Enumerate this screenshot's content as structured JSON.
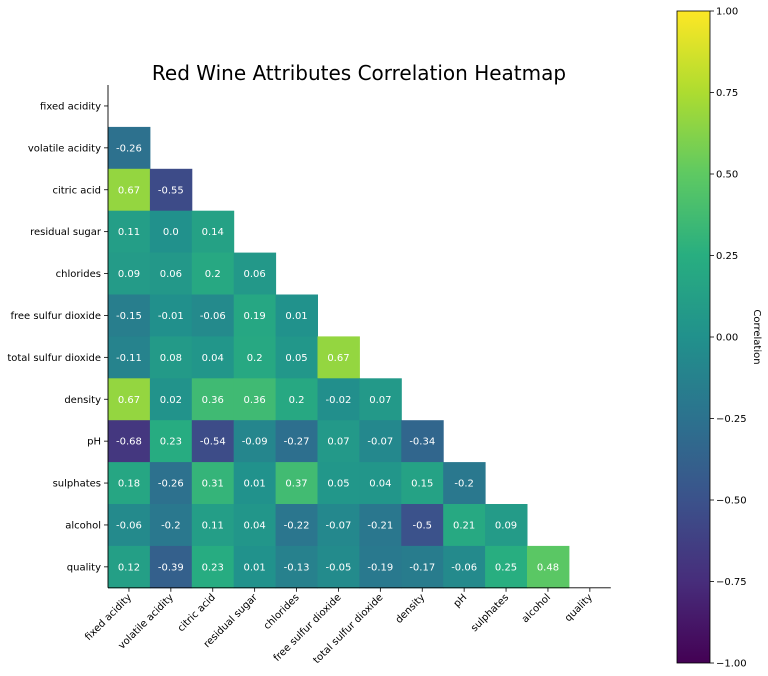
{
  "chart_data": {
    "type": "heatmap",
    "title": "Red Wine Attributes Correlation Heatmap",
    "colormap": "viridis",
    "mask": "upper-triangle-including-diagonal",
    "labels": [
      "fixed acidity",
      "volatile acidity",
      "citric acid",
      "residual sugar",
      "chlorides",
      "free sulfur dioxide",
      "total sulfur dioxide",
      "density",
      "pH",
      "sulphates",
      "alcohol",
      "quality"
    ],
    "values": [
      [
        null,
        null,
        null,
        null,
        null,
        null,
        null,
        null,
        null,
        null,
        null,
        null
      ],
      [
        -0.26,
        null,
        null,
        null,
        null,
        null,
        null,
        null,
        null,
        null,
        null,
        null
      ],
      [
        0.67,
        -0.55,
        null,
        null,
        null,
        null,
        null,
        null,
        null,
        null,
        null,
        null
      ],
      [
        0.11,
        0.0,
        0.14,
        null,
        null,
        null,
        null,
        null,
        null,
        null,
        null,
        null
      ],
      [
        0.09,
        0.06,
        0.2,
        0.06,
        null,
        null,
        null,
        null,
        null,
        null,
        null,
        null
      ],
      [
        -0.15,
        -0.01,
        -0.06,
        0.19,
        0.01,
        null,
        null,
        null,
        null,
        null,
        null,
        null
      ],
      [
        -0.11,
        0.08,
        0.04,
        0.2,
        0.05,
        0.67,
        null,
        null,
        null,
        null,
        null,
        null
      ],
      [
        0.67,
        0.02,
        0.36,
        0.36,
        0.2,
        -0.02,
        0.07,
        null,
        null,
        null,
        null,
        null
      ],
      [
        -0.68,
        0.23,
        -0.54,
        -0.09,
        -0.27,
        0.07,
        -0.07,
        -0.34,
        null,
        null,
        null,
        null
      ],
      [
        0.18,
        -0.26,
        0.31,
        0.01,
        0.37,
        0.05,
        0.04,
        0.15,
        -0.2,
        null,
        null,
        null
      ],
      [
        -0.06,
        -0.2,
        0.11,
        0.04,
        -0.22,
        -0.07,
        -0.21,
        -0.5,
        0.21,
        0.09,
        null,
        null
      ],
      [
        0.12,
        -0.39,
        0.23,
        0.01,
        -0.13,
        -0.05,
        -0.19,
        -0.17,
        -0.06,
        0.25,
        0.48,
        null
      ]
    ],
    "value_labels": [
      [
        null,
        null,
        null,
        null,
        null,
        null,
        null,
        null,
        null,
        null,
        null,
        null
      ],
      [
        "-0.26",
        null,
        null,
        null,
        null,
        null,
        null,
        null,
        null,
        null,
        null,
        null
      ],
      [
        "0.67",
        "-0.55",
        null,
        null,
        null,
        null,
        null,
        null,
        null,
        null,
        null,
        null
      ],
      [
        "0.11",
        "0.0",
        "0.14",
        null,
        null,
        null,
        null,
        null,
        null,
        null,
        null,
        null
      ],
      [
        "0.09",
        "0.06",
        "0.2",
        "0.06",
        null,
        null,
        null,
        null,
        null,
        null,
        null,
        null
      ],
      [
        "-0.15",
        "-0.01",
        "-0.06",
        "0.19",
        "0.01",
        null,
        null,
        null,
        null,
        null,
        null,
        null
      ],
      [
        "-0.11",
        "0.08",
        "0.04",
        "0.2",
        "0.05",
        "0.67",
        null,
        null,
        null,
        null,
        null,
        null
      ],
      [
        "0.67",
        "0.02",
        "0.36",
        "0.36",
        "0.2",
        "-0.02",
        "0.07",
        null,
        null,
        null,
        null,
        null
      ],
      [
        "-0.68",
        "0.23",
        "-0.54",
        "-0.09",
        "-0.27",
        "0.07",
        "-0.07",
        "-0.34",
        null,
        null,
        null,
        null
      ],
      [
        "0.18",
        "-0.26",
        "0.31",
        "0.01",
        "0.37",
        "0.05",
        "0.04",
        "0.15",
        "-0.2",
        null,
        null,
        null
      ],
      [
        "-0.06",
        "-0.2",
        "0.11",
        "0.04",
        "-0.22",
        "-0.07",
        "-0.21",
        "-0.5",
        "0.21",
        "0.09",
        null,
        null
      ],
      [
        "0.12",
        "-0.39",
        "0.23",
        "0.01",
        "-0.13",
        "-0.05",
        "-0.19",
        "-0.17",
        "-0.06",
        "0.25",
        "0.48",
        null
      ]
    ],
    "colorbar": {
      "label": "Correlation",
      "range": [
        -1.0,
        1.0
      ],
      "ticks": [
        1.0,
        0.75,
        0.5,
        0.25,
        0.0,
        -0.25,
        -0.5,
        -0.75,
        -1.0
      ],
      "tick_labels": [
        "1.00",
        "0.75",
        "0.50",
        "0.25",
        "0.00",
        "−0.25",
        "−0.50",
        "−0.75",
        "−1.00"
      ]
    },
    "grid": false
  }
}
